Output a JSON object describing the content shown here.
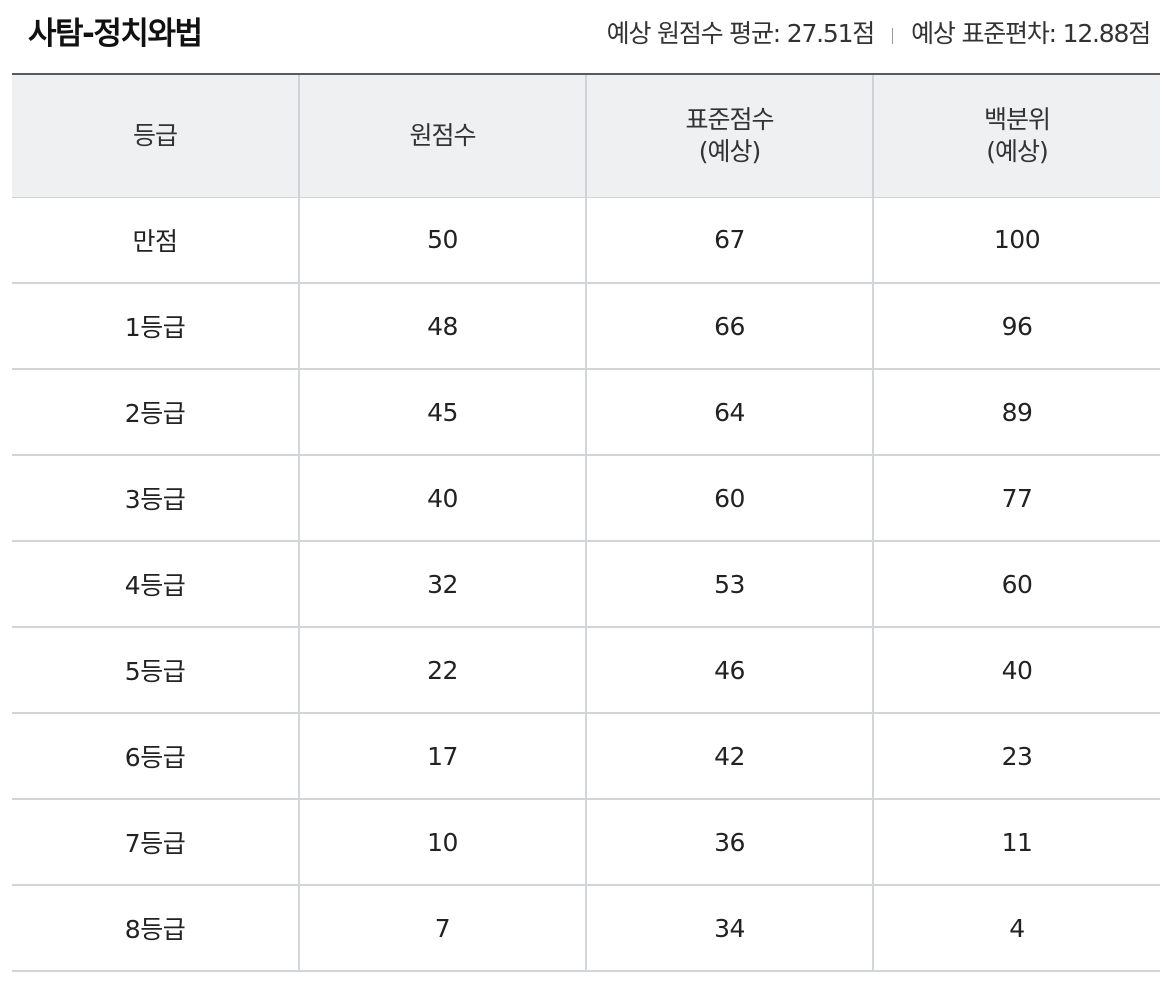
{
  "header": {
    "title": "사탐-정치와법",
    "avg_stat": "예상 원점수 평균: 27.51점",
    "sd_stat": "예상 표준편차: 12.88점"
  },
  "table": {
    "columns": [
      {
        "line1": "등급",
        "line2": ""
      },
      {
        "line1": "원점수",
        "line2": ""
      },
      {
        "line1": "표준점수",
        "line2": "(예상)"
      },
      {
        "line1": "백분위",
        "line2": "(예상)"
      }
    ],
    "rows": [
      {
        "grade": "만점",
        "raw": "50",
        "standard": "67",
        "percentile": "100"
      },
      {
        "grade": "1등급",
        "raw": "48",
        "standard": "66",
        "percentile": "96"
      },
      {
        "grade": "2등급",
        "raw": "45",
        "standard": "64",
        "percentile": "89"
      },
      {
        "grade": "3등급",
        "raw": "40",
        "standard": "60",
        "percentile": "77"
      },
      {
        "grade": "4등급",
        "raw": "32",
        "standard": "53",
        "percentile": "60"
      },
      {
        "grade": "5등급",
        "raw": "22",
        "standard": "46",
        "percentile": "40"
      },
      {
        "grade": "6등급",
        "raw": "17",
        "standard": "42",
        "percentile": "23"
      },
      {
        "grade": "7등급",
        "raw": "10",
        "standard": "36",
        "percentile": "11"
      },
      {
        "grade": "8등급",
        "raw": "7",
        "standard": "34",
        "percentile": "4"
      }
    ]
  }
}
